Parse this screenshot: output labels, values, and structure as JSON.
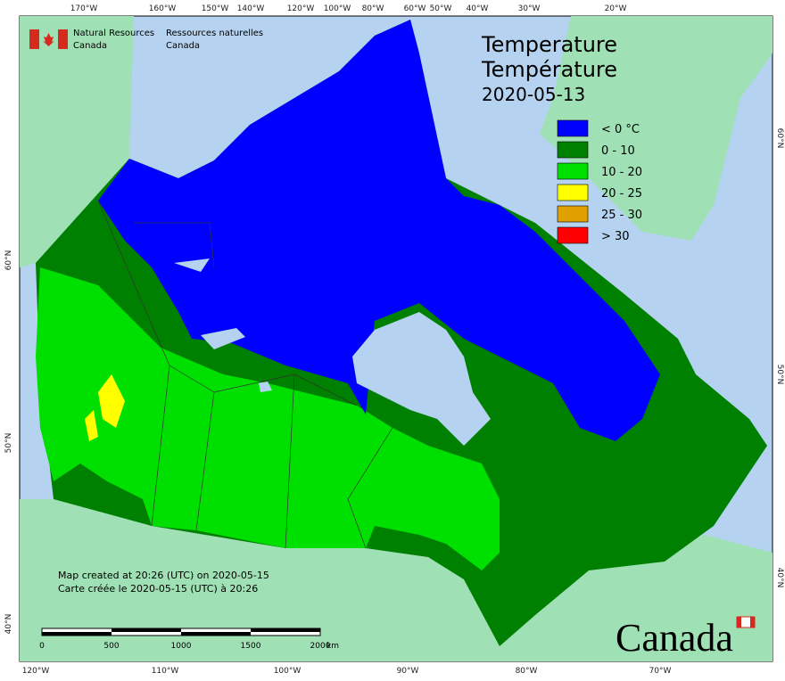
{
  "header": {
    "agency_en": [
      "Natural Resources",
      "Canada"
    ],
    "agency_fr": [
      "Ressources naturelles",
      "Canada"
    ]
  },
  "title": {
    "en": "Temperature",
    "fr": "Température",
    "date": "2020-05-13"
  },
  "legend": [
    {
      "label": "< 0 °C",
      "color": "#0000ff"
    },
    {
      "label": "0 - 10",
      "color": "#008000"
    },
    {
      "label": "10 - 20",
      "color": "#00e000"
    },
    {
      "label": "20 - 25",
      "color": "#ffff00"
    },
    {
      "label": "25 - 30",
      "color": "#e0a000"
    },
    {
      "label": "> 30",
      "color": "#ff0000"
    }
  ],
  "graticule": {
    "top": [
      "170°W",
      "160°W",
      "150°W",
      "140°W",
      "120°W",
      "100°W",
      "80°W",
      "60°W",
      "50°W",
      "40°W",
      "30°W",
      "20°W"
    ],
    "bottom": [
      "120°W",
      "110°W",
      "100°W",
      "90°W",
      "80°W",
      "70°W"
    ],
    "left": [
      "60°N",
      "50°N",
      "40°N"
    ],
    "right": [
      "60°N",
      "50°N",
      "40°N"
    ]
  },
  "notes": [
    "Map created at 20:26 (UTC) on 2020-05-15",
    "Carte créée le 2020-05-15 (UTC) à 20:26"
  ],
  "scale": {
    "labels": [
      "0",
      "500",
      "1000",
      "1500",
      "2000"
    ],
    "unit": "km"
  },
  "wordmark": "Canada"
}
